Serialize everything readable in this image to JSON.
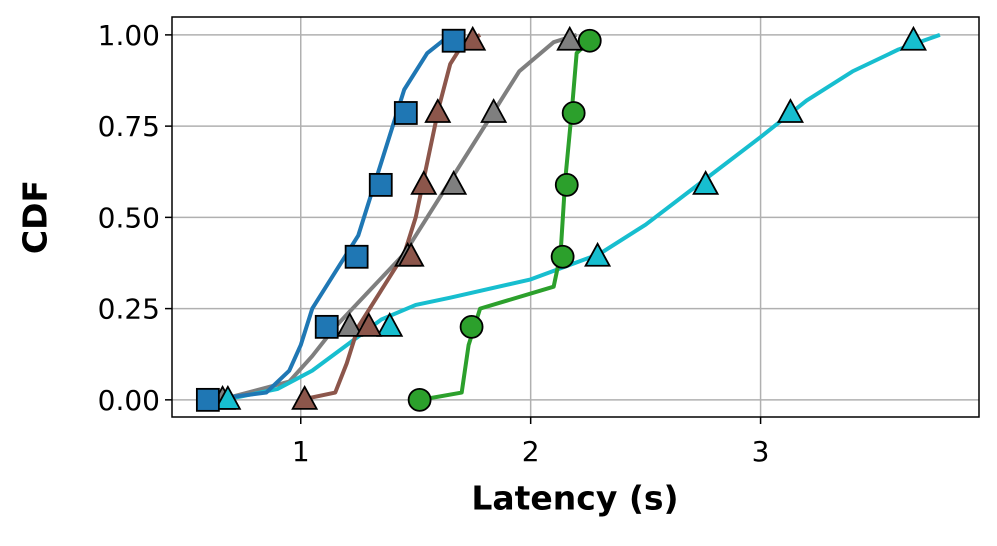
{
  "chart_data": {
    "type": "line",
    "xlabel": "Latency (s)",
    "ylabel": "CDF",
    "xlim": [
      0.44,
      3.95
    ],
    "ylim": [
      -0.047,
      1.049
    ],
    "xticks": [
      1,
      2,
      3
    ],
    "yticks": [
      {
        "value": 0,
        "label": "0.00"
      },
      {
        "value": 0.25,
        "label": "0.25"
      },
      {
        "value": 0.5,
        "label": "0.50"
      },
      {
        "value": 0.75,
        "label": "0.75"
      },
      {
        "value": 1,
        "label": "1.00"
      }
    ],
    "grid": true,
    "series": [
      {
        "color": "#7f7f7f",
        "marker": "triangle",
        "x": [
          0.65,
          0.95,
          1.05,
          1.15,
          1.3,
          1.45,
          1.55,
          1.65,
          1.75,
          1.85,
          1.95,
          2.1,
          2.2
        ],
        "values": [
          0,
          0.05,
          0.12,
          0.2,
          0.3,
          0.4,
          0.5,
          0.6,
          0.7,
          0.8,
          0.9,
          0.98,
          1.0
        ],
        "markers": {
          "x": [
            0.66,
            1.213,
            1.465,
            1.665,
            1.839,
            2.17
          ],
          "values": [
            0,
            0.2,
            0.392,
            0.589,
            0.786,
            0.984
          ]
        }
      },
      {
        "color": "#17becf",
        "marker": "triangle",
        "x": [
          0.67,
          0.9,
          1.05,
          1.2,
          1.35,
          1.5,
          1.65,
          2.0,
          2.3,
          2.5,
          2.75,
          3.0,
          3.2,
          3.4,
          3.6,
          3.78
        ],
        "values": [
          0,
          0.03,
          0.08,
          0.15,
          0.22,
          0.26,
          0.28,
          0.33,
          0.4,
          0.48,
          0.6,
          0.72,
          0.82,
          0.9,
          0.96,
          1.0
        ],
        "markers": {
          "x": [
            0.683,
            1.387,
            2.291,
            2.761,
            3.13,
            3.665
          ],
          "values": [
            0,
            0.2,
            0.392,
            0.589,
            0.786,
            0.984
          ]
        }
      },
      {
        "color": "#8c564b",
        "marker": "triangle",
        "x": [
          1.0,
          1.15,
          1.2,
          1.25,
          1.35,
          1.45,
          1.5,
          1.55,
          1.6,
          1.65,
          1.7,
          1.78
        ],
        "values": [
          0,
          0.02,
          0.1,
          0.2,
          0.3,
          0.4,
          0.5,
          0.65,
          0.8,
          0.92,
          0.97,
          1.0
        ],
        "markers": {
          "x": [
            1.017,
            1.296,
            1.48,
            1.535,
            1.596,
            1.748
          ],
          "values": [
            0,
            0.2,
            0.392,
            0.589,
            0.786,
            0.984
          ]
        }
      },
      {
        "color": "#2ca02c",
        "marker": "circle",
        "x": [
          1.52,
          1.7,
          1.73,
          1.78,
          2.1,
          2.13,
          2.15,
          2.18,
          2.2,
          2.25
        ],
        "values": [
          0,
          0.02,
          0.15,
          0.25,
          0.31,
          0.4,
          0.6,
          0.8,
          0.95,
          0.98
        ],
        "markers": {
          "x": [
            1.517,
            1.743,
            2.139,
            2.157,
            2.187,
            2.257
          ],
          "values": [
            0,
            0.2,
            0.392,
            0.589,
            0.786,
            0.984
          ]
        }
      },
      {
        "color": "#1f77b4",
        "marker": "square",
        "x": [
          0.6,
          0.85,
          0.95,
          1.0,
          1.05,
          1.15,
          1.25,
          1.3,
          1.35,
          1.4,
          1.45,
          1.55,
          1.65
        ],
        "values": [
          0,
          0.02,
          0.08,
          0.15,
          0.25,
          0.35,
          0.45,
          0.55,
          0.65,
          0.75,
          0.85,
          0.95,
          1.0
        ],
        "markers": {
          "x": [
            0.596,
            1.113,
            1.243,
            1.348,
            1.457,
            1.665
          ],
          "values": [
            0,
            0.2,
            0.392,
            0.589,
            0.786,
            0.984
          ]
        }
      }
    ]
  }
}
